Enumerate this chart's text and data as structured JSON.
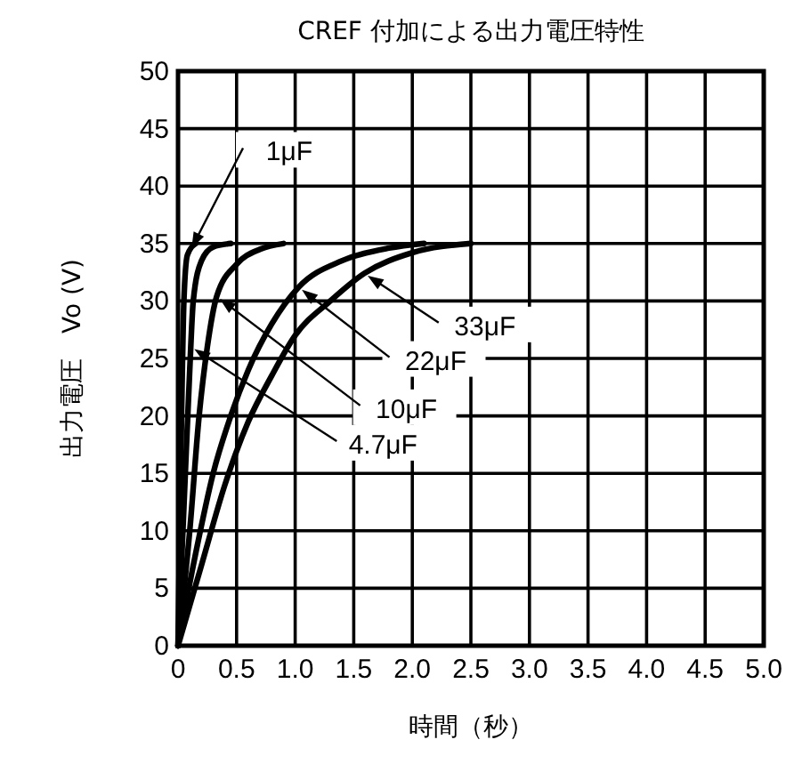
{
  "chart_data": {
    "type": "line",
    "title": "CREF 付加による出力電圧特性",
    "xlabel": "時間（秒）",
    "ylabel": "出力電圧　Vo (V)",
    "xlim": [
      0,
      5
    ],
    "xticks": [
      0,
      0.5,
      {
        "value": 1,
        "label": "1.0"
      },
      1.5,
      {
        "value": 2,
        "label": "2.0"
      },
      2.5,
      {
        "value": 3,
        "label": "3.0"
      },
      3.5,
      {
        "value": 4,
        "label": "4.0"
      },
      4.5,
      {
        "value": 5,
        "label": "5.0"
      }
    ],
    "ylim": [
      0,
      50
    ],
    "yticks": [
      0,
      5,
      10,
      15,
      20,
      25,
      30,
      35,
      40,
      45,
      50
    ],
    "grid": true,
    "marker": "none",
    "line_style": "solid",
    "series": [
      {
        "name": "1μF",
        "color": "#000000",
        "x": [
          0,
          0.03,
          0.05,
          0.08,
          0.15
        ],
        "values": [
          0,
          20,
          30,
          34,
          35
        ]
      },
      {
        "name": "4.7μF",
        "color": "#000000",
        "x": [
          0,
          0.05,
          0.1,
          0.13,
          0.2,
          0.3,
          0.45
        ],
        "values": [
          0,
          12,
          24,
          30,
          33.5,
          34.7,
          35
        ]
      },
      {
        "name": "10μF",
        "color": "#000000",
        "x": [
          0,
          0.1,
          0.18,
          0.25,
          0.33,
          0.5,
          0.7,
          0.9
        ],
        "values": [
          0,
          10,
          20,
          26,
          30.4,
          33.2,
          34.5,
          35
        ]
      },
      {
        "name": "22μF",
        "color": "#000000",
        "x": [
          0,
          0.15,
          0.3,
          0.45,
          0.6,
          0.8,
          1.03,
          1.4,
          1.8,
          2.1
        ],
        "values": [
          0,
          8,
          15,
          20,
          24,
          28,
          31.2,
          33.5,
          34.6,
          35
        ]
      },
      {
        "name": "33μF",
        "color": "#000000",
        "x": [
          0,
          0.2,
          0.4,
          0.6,
          0.8,
          1,
          1.3,
          1.59,
          2,
          2.5
        ],
        "values": [
          0,
          7,
          14,
          19.5,
          23.5,
          27,
          30,
          32.4,
          34.2,
          35
        ]
      }
    ]
  }
}
